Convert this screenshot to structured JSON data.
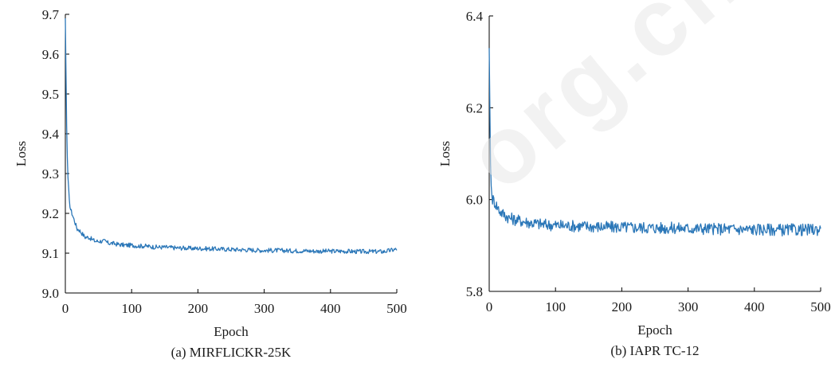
{
  "chart_data": [
    {
      "type": "line",
      "caption": "(a) MIRFLICKR-25K",
      "xlabel": "Epoch",
      "ylabel": "Loss",
      "xlim": [
        0,
        500
      ],
      "ylim": [
        9.0,
        9.7
      ],
      "xticks": [
        "0",
        "100",
        "200",
        "300",
        "400",
        "500"
      ],
      "yticks": [
        "9.0",
        "9.1",
        "9.2",
        "9.3",
        "9.4",
        "9.5",
        "9.6",
        "9.7"
      ],
      "grid": false,
      "color": "#2b77b8",
      "series": [
        {
          "x": [
            0,
            1,
            2,
            3,
            4,
            5,
            6,
            8,
            10,
            12,
            14,
            16,
            18,
            20,
            25,
            30,
            35,
            40,
            45,
            50,
            55,
            60,
            65,
            70,
            80,
            90,
            100,
            110,
            120,
            130,
            140,
            150,
            160,
            170,
            180,
            190,
            200,
            220,
            240,
            260,
            280,
            300,
            320,
            340,
            360,
            380,
            400,
            420,
            440,
            460,
            480,
            500
          ],
          "y": [
            9.69,
            9.55,
            9.42,
            9.34,
            9.29,
            9.26,
            9.23,
            9.21,
            9.2,
            9.19,
            9.18,
            9.17,
            9.16,
            9.16,
            9.15,
            9.14,
            9.14,
            9.135,
            9.13,
            9.13,
            9.13,
            9.13,
            9.125,
            9.125,
            9.122,
            9.12,
            9.12,
            9.118,
            9.118,
            9.116,
            9.115,
            9.115,
            9.114,
            9.113,
            9.113,
            9.112,
            9.112,
            9.111,
            9.11,
            9.109,
            9.108,
            9.107,
            9.107,
            9.106,
            9.106,
            9.105,
            9.105,
            9.105,
            9.104,
            9.104,
            9.104,
            9.11
          ]
        }
      ]
    },
    {
      "type": "line",
      "caption": "(b) IAPR TC-12",
      "xlabel": "Epoch",
      "ylabel": "Loss",
      "xlim": [
        0,
        500
      ],
      "ylim": [
        5.8,
        6.4
      ],
      "xticks": [
        "0",
        "100",
        "200",
        "300",
        "400",
        "500"
      ],
      "yticks": [
        "5.8",
        "6.0",
        "6.2",
        "6.4"
      ],
      "grid": false,
      "color": "#2b77b8",
      "series": [
        {
          "x": [
            0,
            1,
            2,
            3,
            4,
            5,
            6,
            8,
            10,
            12,
            14,
            16,
            18,
            20,
            25,
            30,
            35,
            40,
            50,
            60,
            70,
            80,
            90,
            100,
            120,
            140,
            160,
            180,
            200,
            220,
            240,
            260,
            280,
            300,
            320,
            340,
            360,
            380,
            400,
            420,
            440,
            460,
            480,
            500
          ],
          "y": [
            6.33,
            6.2,
            6.08,
            6.03,
            6.01,
            6.0,
            6.0,
            5.995,
            5.99,
            5.985,
            5.98,
            5.975,
            5.972,
            5.97,
            5.965,
            5.96,
            5.958,
            5.956,
            5.953,
            5.95,
            5.948,
            5.946,
            5.945,
            5.944,
            5.943,
            5.942,
            5.941,
            5.94,
            5.94,
            5.939,
            5.939,
            5.938,
            5.938,
            5.937,
            5.937,
            5.936,
            5.936,
            5.935,
            5.935,
            5.935,
            5.934,
            5.934,
            5.934,
            5.935
          ]
        }
      ]
    }
  ],
  "watermark": "org.cn"
}
